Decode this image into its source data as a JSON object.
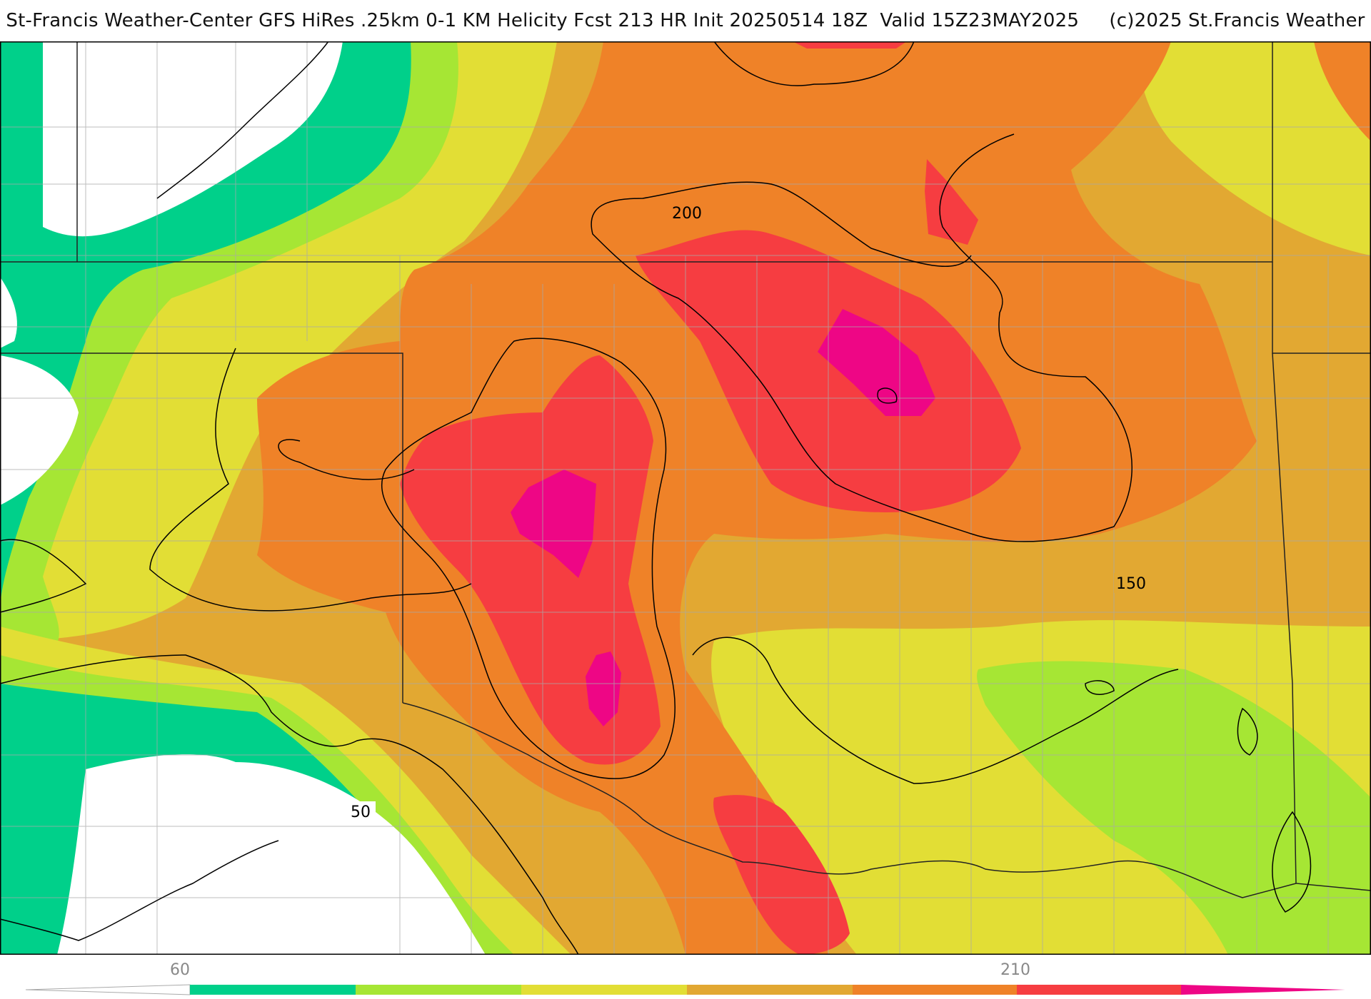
{
  "title": "St-Francis Weather-Center GFS HiRes .25km 0-1 KM Helicity Fcst 213 HR Init 20250514 18Z  Valid 15Z23MAY2025     (c)2025 St.Francis Weather",
  "colorbar": {
    "tick_low": "60",
    "tick_high": "210",
    "colors": [
      "#ffffff",
      "#00d08a",
      "#a6e634",
      "#e2de35",
      "#e2a832",
      "#ef8228",
      "#f63d41",
      "#ee0685"
    ]
  },
  "contour_labels": [
    "200",
    "150",
    "50"
  ],
  "palette": {
    "white": "#ffffff",
    "green": "#00d08a",
    "lime": "#a6e634",
    "yellow": "#e2de35",
    "gold": "#e2a832",
    "orange": "#ef8228",
    "red": "#f63d41",
    "magenta": "#ee0685"
  }
}
